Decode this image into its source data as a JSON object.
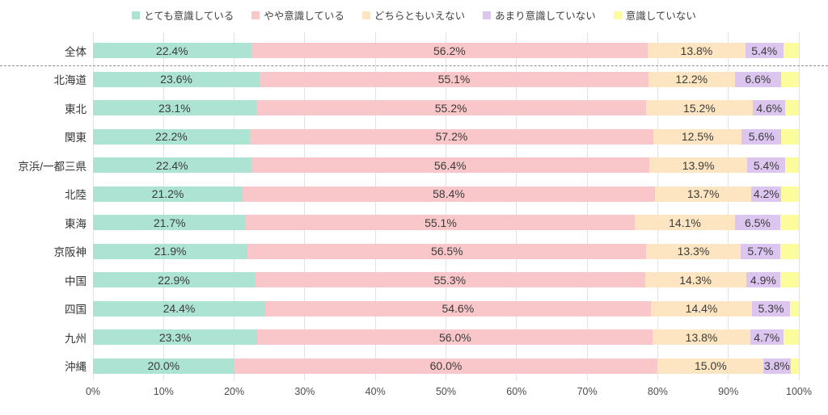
{
  "chart_data": {
    "type": "bar",
    "orientation": "horizontal",
    "stacked": true,
    "unit": "%",
    "title": "",
    "legend_position": "top",
    "grid": true,
    "xlim": [
      0,
      100
    ],
    "x_ticks": [
      "0%",
      "10%",
      "20%",
      "30%",
      "40%",
      "50%",
      "60%",
      "70%",
      "80%",
      "90%",
      "100%"
    ],
    "categories": [
      "全体",
      "北海道",
      "東北",
      "関東",
      "京浜/一都三県",
      "北陸",
      "東海",
      "京阪神",
      "中国",
      "四国",
      "九州",
      "沖縄"
    ],
    "separator_after_index": 0,
    "series": [
      {
        "name": "とても意識している",
        "color": "#ace3d3",
        "show_labels": true,
        "values": [
          22.4,
          23.6,
          23.1,
          22.2,
          22.4,
          21.2,
          21.7,
          21.9,
          22.9,
          24.4,
          23.3,
          20.0
        ]
      },
      {
        "name": "やや意識している",
        "color": "#f9c6c9",
        "show_labels": true,
        "values": [
          56.2,
          55.1,
          55.2,
          57.2,
          56.4,
          58.4,
          55.1,
          56.5,
          55.3,
          54.6,
          56.0,
          60.0
        ]
      },
      {
        "name": "どちらともいえない",
        "color": "#fce5c0",
        "show_labels": true,
        "values": [
          13.8,
          12.2,
          15.2,
          12.5,
          13.9,
          13.7,
          14.1,
          13.3,
          14.3,
          14.4,
          13.8,
          15.0
        ]
      },
      {
        "name": "あまり意識していない",
        "color": "#dcc6f0",
        "show_labels": true,
        "values": [
          5.4,
          6.6,
          4.6,
          5.6,
          5.4,
          4.2,
          6.5,
          5.7,
          4.9,
          5.3,
          4.7,
          3.8
        ]
      },
      {
        "name": "意識していない",
        "color": "#fdfc9d",
        "show_labels": false,
        "values": [
          2.2,
          2.5,
          1.9,
          2.5,
          1.9,
          2.5,
          2.6,
          2.6,
          2.6,
          1.3,
          2.2,
          1.2
        ]
      }
    ],
    "colors": {
      "gridline": "#e2e2e2",
      "separator": "#909090",
      "value_text": "#3b3b3b",
      "axis_text": "#4d4d4d"
    }
  }
}
